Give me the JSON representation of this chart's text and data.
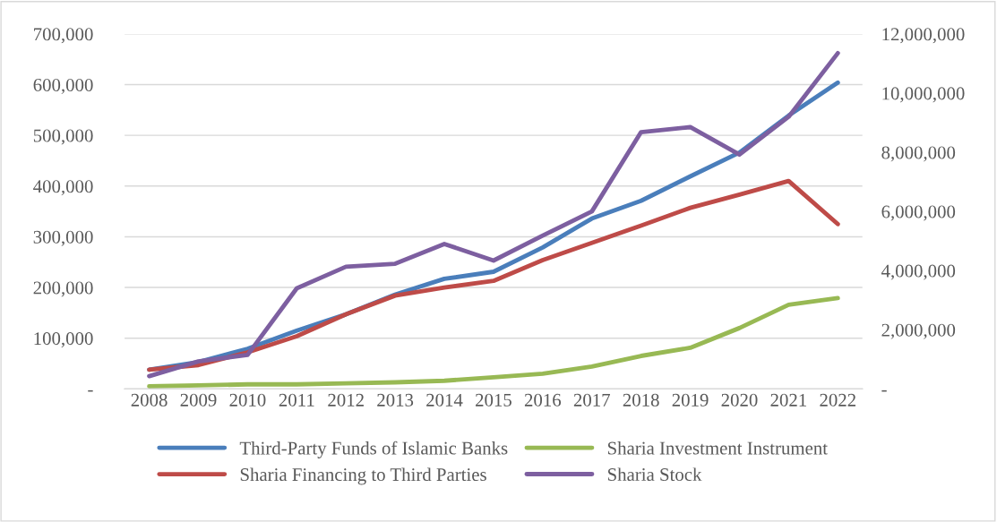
{
  "chart_data": {
    "type": "line",
    "categories": [
      "2008",
      "2009",
      "2010",
      "2011",
      "2012",
      "2013",
      "2014",
      "2015",
      "2016",
      "2017",
      "2018",
      "2019",
      "2020",
      "2021",
      "2022"
    ],
    "series": [
      {
        "name": "Third-Party Funds of Islamic Banks",
        "color": "#4a7ebb",
        "values": [
          38000,
          53000,
          79000,
          115000,
          147000,
          186000,
          217000,
          231000,
          279000,
          336000,
          371000,
          419000,
          466000,
          539000,
          604000
        ]
      },
      {
        "name": "Sharia Financing to Third Parties",
        "color": "#be4b48",
        "values": [
          38000,
          47000,
          72000,
          104000,
          147000,
          184000,
          200000,
          213000,
          254000,
          288000,
          322000,
          357000,
          383000,
          410000,
          325000
        ]
      },
      {
        "name": "Sharia Investment Instrument",
        "color": "#98b954",
        "values": [
          5000,
          7000,
          9000,
          9000,
          11000,
          13000,
          16000,
          23000,
          30000,
          44000,
          65000,
          81000,
          120000,
          166000,
          179000
        ]
      },
      {
        "name": "Sharia Stock",
        "color": "#7d5fa0",
        "axis": "y2",
        "values": [
          430000,
          930000,
          1150000,
          3400000,
          4130000,
          4230000,
          4900000,
          4340000,
          5180000,
          6000000,
          8680000,
          8850000,
          7920000,
          9200000,
          11350000
        ]
      }
    ],
    "ylim": [
      0,
      700000
    ],
    "yticks": [
      {
        "value": 0,
        "label": "-"
      },
      {
        "value": 100000,
        "label": "100,000"
      },
      {
        "value": 200000,
        "label": "200,000"
      },
      {
        "value": 300000,
        "label": "300,000"
      },
      {
        "value": 400000,
        "label": "400,000"
      },
      {
        "value": 500000,
        "label": "500,000"
      },
      {
        "value": 600000,
        "label": "600,000"
      },
      {
        "value": 700000,
        "label": "700,000"
      }
    ],
    "y2lim": [
      0,
      12000000
    ],
    "y2ticks": [
      {
        "value": 0,
        "label": "-"
      },
      {
        "value": 2000000,
        "label": "2,000,000"
      },
      {
        "value": 4000000,
        "label": "4,000,000"
      },
      {
        "value": 6000000,
        "label": "6,000,000"
      },
      {
        "value": 8000000,
        "label": "8,000,000"
      },
      {
        "value": 10000000,
        "label": "10,000,000"
      },
      {
        "value": 12000000,
        "label": "12,000,000"
      }
    ],
    "grid": "y",
    "legend": "bottom",
    "marker": "none",
    "line_style": "solid"
  }
}
